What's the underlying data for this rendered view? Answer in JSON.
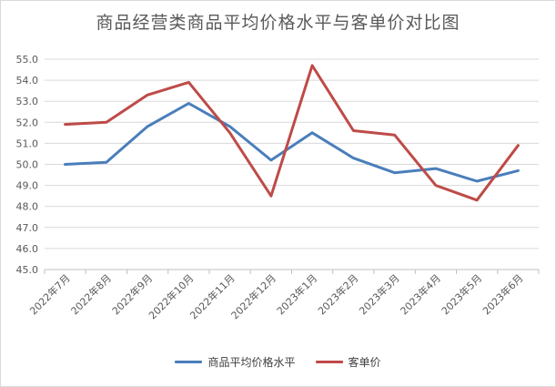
{
  "chart_data": {
    "type": "line",
    "title": "商品经营类商品平均价格水平与客单价对比图",
    "xlabel": "",
    "ylabel": "",
    "ylim": [
      45.0,
      55.0
    ],
    "ytick_step": 1.0,
    "ytick_labels": [
      "45.0",
      "46.0",
      "47.0",
      "48.0",
      "49.0",
      "50.0",
      "51.0",
      "52.0",
      "53.0",
      "54.0",
      "55.0"
    ],
    "grid": true,
    "legend_position": "bottom",
    "categories": [
      "2022年7月",
      "2022年8月",
      "2022年9月",
      "2022年10月",
      "2022年11月",
      "2022年12月",
      "2023年1月",
      "2023年2月",
      "2023年3月",
      "2023年4月",
      "2023年5月",
      "2023年6月"
    ],
    "series": [
      {
        "name": "商品平均价格水平",
        "color": "#4a7ebb",
        "values": [
          50.0,
          50.1,
          51.8,
          52.9,
          51.8,
          50.2,
          51.5,
          50.3,
          49.6,
          49.8,
          49.2,
          49.7
        ]
      },
      {
        "name": "客单价",
        "color": "#be4b48",
        "values": [
          51.9,
          52.0,
          53.3,
          53.9,
          51.5,
          48.5,
          54.7,
          51.6,
          51.4,
          49.0,
          48.3,
          50.9
        ]
      }
    ]
  }
}
